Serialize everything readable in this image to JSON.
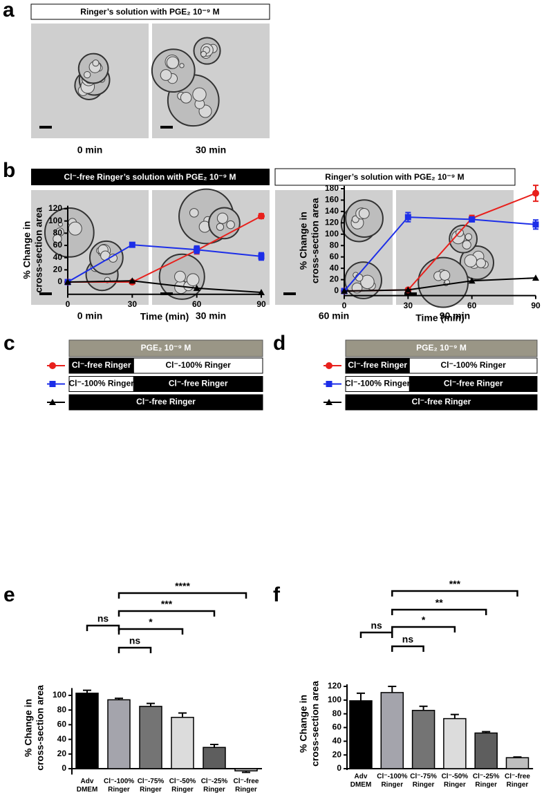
{
  "panel_a": {
    "letter": "a",
    "banner": "Ringer’s solution with PGE₂ 10⁻⁹ M",
    "captions": [
      "0 min",
      "30 min"
    ]
  },
  "panel_b": {
    "letter": "b",
    "banners": [
      "Cl⁻-free Ringer’s solution with PGE₂ 10⁻⁹ M",
      "Ringer’s solution with PGE₂ 10⁻⁹ M"
    ],
    "captions": [
      "0 min",
      "30 min",
      "60 min",
      "90 min"
    ]
  },
  "chart_data": [
    {
      "type": "line",
      "letter": "c",
      "banner": "PGE₂ 10⁻⁹ M",
      "xlabel": "Time (min)",
      "ylabel": [
        "% Change in",
        "cross-section area"
      ],
      "x": [
        0,
        30,
        60,
        90
      ],
      "xlim": [
        0,
        90
      ],
      "xticks": [
        0,
        30,
        60,
        90
      ],
      "ylim": [
        -20,
        125
      ],
      "yticks": [
        0,
        20,
        40,
        60,
        80,
        100,
        120
      ],
      "series": [
        {
          "color": "#e8201c",
          "marker": "circle",
          "values": [
            0,
            0,
            52,
            108
          ],
          "errors": [
            2,
            2,
            6,
            4
          ],
          "phases": [
            {
              "label": "Cl⁻-free Ringer",
              "dark": true,
              "end": 30
            },
            {
              "label": "Cl⁻-100% Ringer",
              "dark": false,
              "end": 90
            }
          ]
        },
        {
          "color": "#1c2ee8",
          "marker": "square",
          "values": [
            0,
            61,
            53,
            42
          ],
          "errors": [
            2,
            3,
            6,
            6
          ],
          "phases": [
            {
              "label": "Cl⁻-100% Ringer",
              "dark": false,
              "end": 30
            },
            {
              "label": "Cl⁻-free Ringer",
              "dark": true,
              "end": 90
            }
          ]
        },
        {
          "color": "#000000",
          "marker": "triangle",
          "values": [
            0,
            2,
            -10,
            -17
          ],
          "phases": [
            {
              "label": "Cl⁻-free Ringer",
              "dark": true,
              "end": 90
            }
          ]
        }
      ]
    },
    {
      "type": "line",
      "letter": "d",
      "banner": "PGE₂ 10⁻⁹ M",
      "xlabel": "Time (min)",
      "ylabel": [
        "% Change in",
        "cross-section area"
      ],
      "x": [
        0,
        30,
        60,
        90
      ],
      "xlim": [
        0,
        90
      ],
      "xticks": [
        0,
        30,
        60,
        90
      ],
      "ylim": [
        -8,
        185
      ],
      "yticks": [
        0,
        20,
        40,
        60,
        80,
        100,
        120,
        140,
        160,
        180
      ],
      "series": [
        {
          "color": "#e8201c",
          "marker": "circle",
          "values": [
            0,
            2,
            128,
            172
          ],
          "errors": [
            2,
            2,
            5,
            14
          ],
          "phases": [
            {
              "label": "Cl⁻-free Ringer",
              "dark": true,
              "end": 30
            },
            {
              "label": "Cl⁻-100% Ringer",
              "dark": false,
              "end": 90
            }
          ]
        },
        {
          "color": "#1c2ee8",
          "marker": "square",
          "values": [
            0,
            130,
            126,
            117
          ],
          "errors": [
            2,
            8,
            4,
            8
          ],
          "phases": [
            {
              "label": "Cl⁻-100% Ringer",
              "dark": false,
              "end": 30
            },
            {
              "label": "Cl⁻-free Ringer",
              "dark": true,
              "end": 90
            }
          ]
        },
        {
          "color": "#000000",
          "marker": "triangle",
          "values": [
            0,
            2,
            18,
            23
          ],
          "phases": [
            {
              "label": "Cl⁻-free Ringer",
              "dark": true,
              "end": 90
            }
          ]
        }
      ]
    },
    {
      "type": "bar",
      "letter": "e",
      "ylabel": [
        "% Change in",
        "cross-section area"
      ],
      "categories": [
        "Adv DMEM",
        "Cl⁻-100% Ringer",
        "Cl⁻-75% Ringer",
        "Cl⁻-50% Ringer",
        "Cl⁻-25% Ringer",
        "Cl⁻-free Ringer"
      ],
      "values": [
        103,
        94,
        85,
        70,
        29,
        -3
      ],
      "errors": [
        4,
        2,
        4,
        6,
        4,
        2
      ],
      "colors": [
        "#000000",
        "#a4a4ac",
        "#747474",
        "#dcdcdc",
        "#5e5e5e",
        "#bebebe"
      ],
      "ylim": [
        -8,
        110
      ],
      "yticks": [
        0,
        20,
        40,
        60,
        80,
        100
      ],
      "comparisons": [
        {
          "from": 0,
          "to": 1,
          "label": "ns"
        },
        {
          "from": 1,
          "to": 2,
          "label": "ns"
        },
        {
          "from": 1,
          "to": 3,
          "label": "*"
        },
        {
          "from": 1,
          "to": 4,
          "label": "***"
        },
        {
          "from": 1,
          "to": 5,
          "label": "****"
        }
      ]
    },
    {
      "type": "bar",
      "letter": "f",
      "ylabel": [
        "% Change in",
        "cross-section area"
      ],
      "categories": [
        "Adv DMEM",
        "Cl⁻-100% Ringer",
        "Cl⁻-75% Ringer",
        "Cl⁻-50% Ringer",
        "Cl⁻-25% Ringer",
        "Cl⁻-free Ringer"
      ],
      "values": [
        99,
        111,
        85,
        73,
        52,
        16
      ],
      "errors": [
        11,
        9,
        6,
        6,
        2,
        1
      ],
      "colors": [
        "#000000",
        "#a4a4ac",
        "#747474",
        "#dcdcdc",
        "#5e5e5e",
        "#bebebe"
      ],
      "ylim": [
        -2,
        123
      ],
      "yticks": [
        0,
        20,
        40,
        60,
        80,
        100,
        120
      ],
      "comparisons": [
        {
          "from": 0,
          "to": 1,
          "label": "ns"
        },
        {
          "from": 1,
          "to": 2,
          "label": "ns"
        },
        {
          "from": 1,
          "to": 3,
          "label": "*"
        },
        {
          "from": 1,
          "to": 4,
          "label": "**"
        },
        {
          "from": 1,
          "to": 5,
          "label": "***"
        }
      ]
    }
  ]
}
